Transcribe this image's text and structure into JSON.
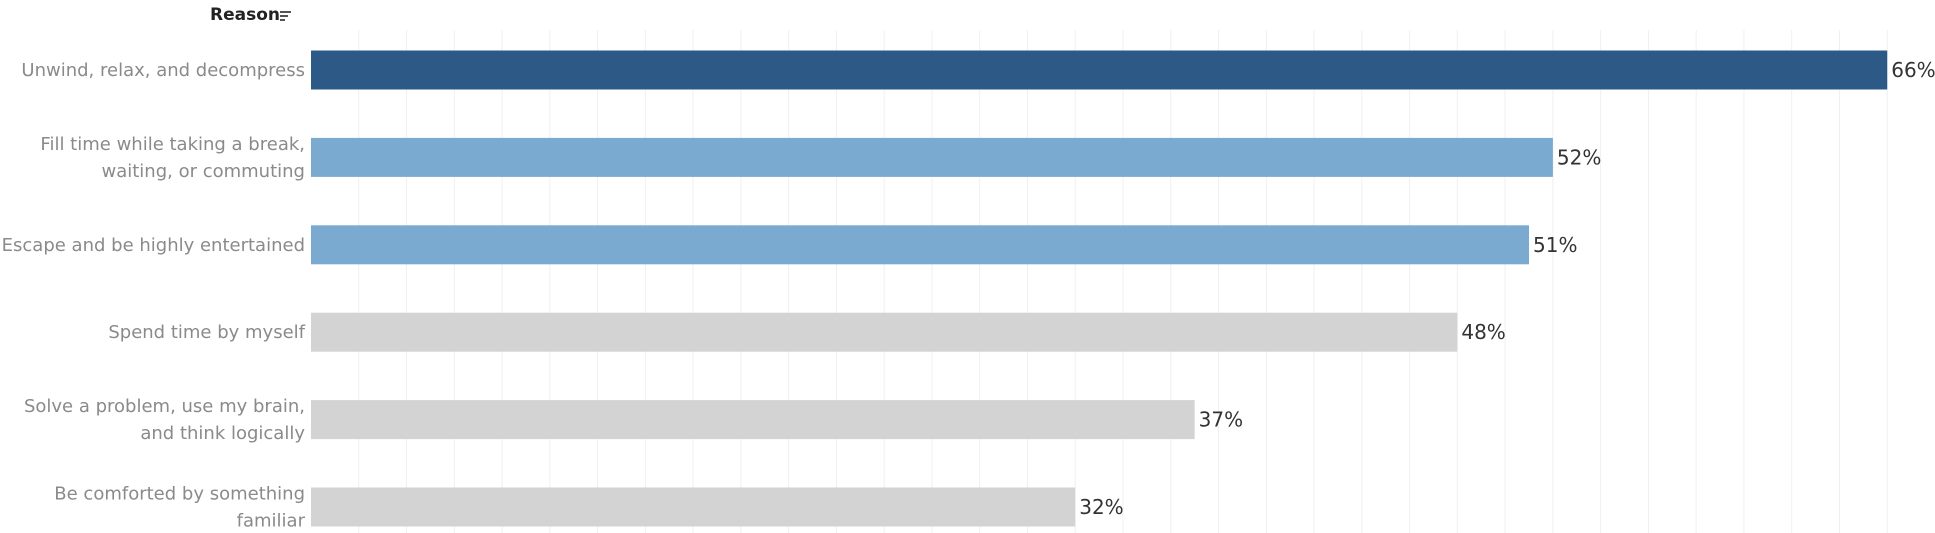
{
  "header": {
    "field_label": "Reason",
    "sort_icon": "sort-descending-icon"
  },
  "colors": {
    "top": "#2c5985",
    "mid": "#7aaad0",
    "low": "#d3d3d3",
    "grid": "#f0f0f0"
  },
  "chart_data": {
    "type": "bar",
    "orientation": "horizontal",
    "categories": [
      "Unwind, relax, and decompress",
      "Fill time while taking a break, waiting, or commuting",
      "Escape and be highly entertained",
      "Spend time by myself",
      "Solve a problem, use my brain, and think logically",
      "Be comforted by something familiar"
    ],
    "category_lines": [
      [
        "Unwind, relax, and decompress"
      ],
      [
        "Fill time while taking a break,",
        "waiting, or commuting"
      ],
      [
        "Escape and be highly entertained"
      ],
      [
        "Spend time by myself"
      ],
      [
        "Solve a problem, use my brain,",
        "and think logically"
      ],
      [
        "Be comforted by something",
        "familiar"
      ]
    ],
    "values": [
      66,
      52,
      51,
      48,
      37,
      32
    ],
    "value_labels": [
      "66%",
      "52%",
      "51%",
      "48%",
      "37%",
      "32%"
    ],
    "color_groups": [
      "top",
      "mid",
      "mid",
      "low",
      "low",
      "low"
    ],
    "xlim": [
      0,
      68
    ],
    "grid": true,
    "xlabel": "",
    "ylabel": ""
  }
}
